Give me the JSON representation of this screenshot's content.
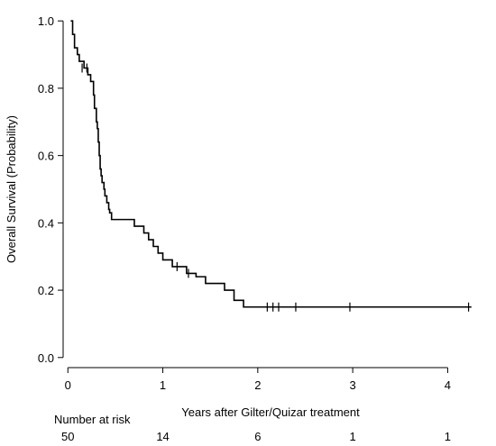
{
  "chart_data": {
    "type": "line",
    "xlabel": "Years after Gilter/Quizar treatment",
    "ylabel": "Overall Survival (Probability)",
    "xlim": [
      -0.05,
      4.3
    ],
    "ylim": [
      -0.03,
      1.03
    ],
    "x_ticks": [
      0,
      1,
      2,
      3,
      4
    ],
    "y_ticks": [
      0.0,
      0.2,
      0.4,
      0.6,
      0.8,
      1.0
    ],
    "x_tick_labels": [
      "0",
      "1",
      "2",
      "3",
      "4"
    ],
    "y_tick_labels": [
      "0.0",
      "0.2",
      "0.4",
      "0.6",
      "0.8",
      "1.0"
    ],
    "grid": false,
    "series": [
      {
        "color": "#000000",
        "step": [
          [
            0.03,
            1.0
          ],
          [
            0.05,
            0.96
          ],
          [
            0.07,
            0.92
          ],
          [
            0.1,
            0.9
          ],
          [
            0.12,
            0.88
          ],
          [
            0.17,
            0.86
          ],
          [
            0.21,
            0.84
          ],
          [
            0.24,
            0.82
          ],
          [
            0.27,
            0.78
          ],
          [
            0.28,
            0.74
          ],
          [
            0.3,
            0.7
          ],
          [
            0.31,
            0.68
          ],
          [
            0.32,
            0.64
          ],
          [
            0.33,
            0.6
          ],
          [
            0.34,
            0.56
          ],
          [
            0.35,
            0.54
          ],
          [
            0.36,
            0.52
          ],
          [
            0.38,
            0.5
          ],
          [
            0.39,
            0.48
          ],
          [
            0.41,
            0.46
          ],
          [
            0.43,
            0.44
          ],
          [
            0.44,
            0.43
          ],
          [
            0.46,
            0.41
          ],
          [
            0.7,
            0.39
          ],
          [
            0.8,
            0.37
          ],
          [
            0.85,
            0.35
          ],
          [
            0.9,
            0.33
          ],
          [
            0.95,
            0.31
          ],
          [
            1.0,
            0.29
          ],
          [
            1.1,
            0.27
          ],
          [
            1.25,
            0.25
          ],
          [
            1.35,
            0.24
          ],
          [
            1.45,
            0.22
          ],
          [
            1.65,
            0.2
          ],
          [
            1.75,
            0.17
          ],
          [
            1.85,
            0.15
          ]
        ],
        "end_x": 4.25,
        "censored": [
          [
            0.15,
            0.86
          ],
          [
            0.2,
            0.86
          ],
          [
            1.15,
            0.27
          ],
          [
            1.27,
            0.25
          ],
          [
            2.1,
            0.15
          ],
          [
            2.16,
            0.15
          ],
          [
            2.22,
            0.15
          ],
          [
            2.4,
            0.15
          ],
          [
            2.97,
            0.15
          ],
          [
            4.22,
            0.15
          ]
        ]
      }
    ],
    "risk_table": {
      "title": "Number at risk",
      "times": [
        0,
        1,
        2,
        3,
        4
      ],
      "counts": [
        "50",
        "14",
        "6",
        "1",
        "1"
      ]
    }
  }
}
